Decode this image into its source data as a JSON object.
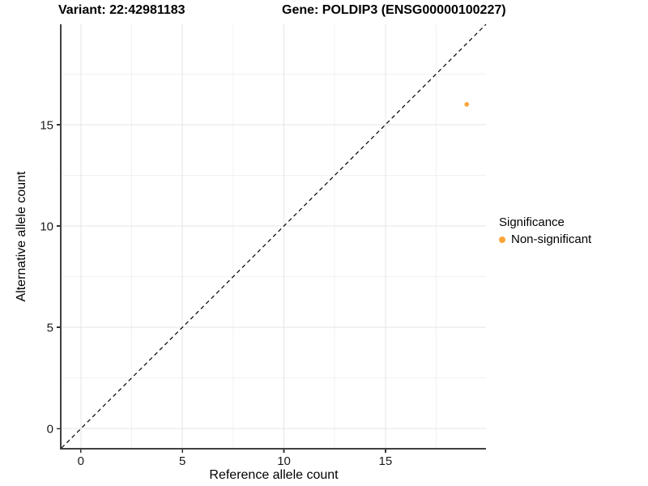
{
  "chart_data": {
    "type": "scatter",
    "title_left": "Variant: 22:42981183",
    "title_right": "Gene: POLDIP3 (ENSG00000100227)",
    "xlabel": "Reference allele count",
    "ylabel": "Alternative allele count",
    "xlim": [
      -0.95,
      19.95
    ],
    "ylim": [
      -0.95,
      19.95
    ],
    "xticks": [
      0,
      5,
      10,
      15
    ],
    "yticks": [
      0,
      5,
      10,
      15
    ],
    "minor_ticks": [
      2.5,
      7.5,
      12.5,
      17.5
    ],
    "grid": true,
    "identity_line": {
      "style": "dashed",
      "from": [
        -0.95,
        -0.95
      ],
      "to": [
        19.95,
        19.95
      ],
      "color": "#000000"
    },
    "points": [
      {
        "x": 19,
        "y": 16,
        "significance": "Non-significant",
        "color": "#FAA43A"
      }
    ],
    "legend": {
      "title": "Significance",
      "position": "right",
      "items": [
        {
          "label": "Non-significant",
          "color": "#FAA43A",
          "marker": "circle-icon"
        }
      ]
    },
    "colors": {
      "axis_line": "#404040",
      "tick_mark": "#333333",
      "tick_label": "#1a1a1a",
      "grid_major": "#e4e4e4",
      "grid_minor": "#f1f1f1",
      "background": "#ffffff"
    }
  }
}
